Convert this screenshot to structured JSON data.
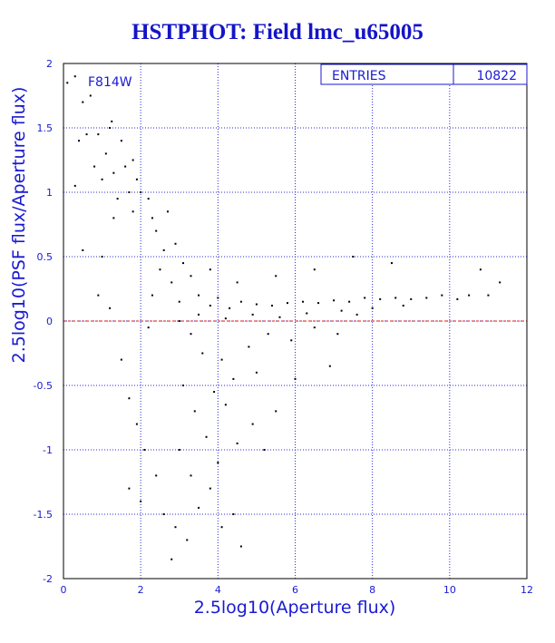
{
  "title": "HSTPHOT: Field lmc_u65005",
  "filter_label": "F814W",
  "stats_box": {
    "label": "ENTRIES",
    "value": "10822"
  },
  "colors": {
    "axis": "#1a1ad2",
    "grid": "#2a2ad6",
    "points": "#000000",
    "zero_line": "#d01818"
  },
  "chart_data": {
    "type": "scatter",
    "title": "HSTPHOT: Field lmc_u65005",
    "xlabel": "2.5log10(Aperture flux)",
    "ylabel": "2.5log10(PSF flux/Aperture flux)",
    "xlim": [
      0,
      12
    ],
    "ylim": [
      -2,
      2
    ],
    "xticks": [
      "0",
      "2",
      "4",
      "6",
      "8",
      "10",
      "12"
    ],
    "yticks": [
      "-2",
      "-1.5",
      "-1",
      "-0.5",
      "0",
      "0.5",
      "1",
      "1.5",
      "2"
    ],
    "grid": true,
    "reference_line_y": 0,
    "entries": 10822,
    "points": [
      [
        0.1,
        1.85
      ],
      [
        0.3,
        1.9
      ],
      [
        0.5,
        1.7
      ],
      [
        0.7,
        1.75
      ],
      [
        0.6,
        1.45
      ],
      [
        0.4,
        1.4
      ],
      [
        0.9,
        1.45
      ],
      [
        1.1,
        1.3
      ],
      [
        1.2,
        1.5
      ],
      [
        1.25,
        1.55
      ],
      [
        1.5,
        1.4
      ],
      [
        0.8,
        1.2
      ],
      [
        1.0,
        1.1
      ],
      [
        1.3,
        1.15
      ],
      [
        1.6,
        1.2
      ],
      [
        1.8,
        1.25
      ],
      [
        1.4,
        0.95
      ],
      [
        1.7,
        1.0
      ],
      [
        1.9,
        1.1
      ],
      [
        0.3,
        1.05
      ],
      [
        0.5,
        0.55
      ],
      [
        1.0,
        0.5
      ],
      [
        1.3,
        0.8
      ],
      [
        1.8,
        0.85
      ],
      [
        2.0,
        1.0
      ],
      [
        2.2,
        0.95
      ],
      [
        2.3,
        0.8
      ],
      [
        0.9,
        0.2
      ],
      [
        1.2,
        0.1
      ],
      [
        1.5,
        -0.3
      ],
      [
        1.7,
        -0.6
      ],
      [
        1.9,
        -0.8
      ],
      [
        2.1,
        -1.0
      ],
      [
        2.4,
        -1.2
      ],
      [
        2.0,
        -1.4
      ],
      [
        1.7,
        -1.3
      ],
      [
        2.6,
        -1.5
      ],
      [
        2.9,
        -1.6
      ],
      [
        3.2,
        -1.7
      ],
      [
        3.5,
        -1.45
      ],
      [
        3.8,
        -1.3
      ],
      [
        4.1,
        -1.6
      ],
      [
        4.4,
        -1.5
      ],
      [
        4.6,
        -1.75
      ],
      [
        2.8,
        -1.85
      ],
      [
        3.0,
        -1.0
      ],
      [
        3.3,
        -1.2
      ],
      [
        3.7,
        -0.9
      ],
      [
        4.0,
        -1.1
      ],
      [
        4.5,
        -0.95
      ],
      [
        4.9,
        -0.8
      ],
      [
        5.2,
        -1.0
      ],
      [
        5.5,
        -0.7
      ],
      [
        3.4,
        -0.7
      ],
      [
        3.1,
        -0.5
      ],
      [
        4.2,
        -0.65
      ],
      [
        2.9,
        0.6
      ],
      [
        3.1,
        0.45
      ],
      [
        3.3,
        0.35
      ],
      [
        2.8,
        0.3
      ],
      [
        3.0,
        0.15
      ],
      [
        3.5,
        0.2
      ],
      [
        3.8,
        0.12
      ],
      [
        4.0,
        0.18
      ],
      [
        4.3,
        0.1
      ],
      [
        4.6,
        0.15
      ],
      [
        5.0,
        0.13
      ],
      [
        5.4,
        0.12
      ],
      [
        5.8,
        0.14
      ],
      [
        6.2,
        0.15
      ],
      [
        6.6,
        0.14
      ],
      [
        7.0,
        0.16
      ],
      [
        7.4,
        0.15
      ],
      [
        7.8,
        0.18
      ],
      [
        8.2,
        0.17
      ],
      [
        8.6,
        0.18
      ],
      [
        9.0,
        0.17
      ],
      [
        9.4,
        0.18
      ],
      [
        9.8,
        0.2
      ],
      [
        10.2,
        0.17
      ],
      [
        10.5,
        0.2
      ],
      [
        11.0,
        0.2
      ],
      [
        11.3,
        0.3
      ],
      [
        10.8,
        0.4
      ],
      [
        8.5,
        0.45
      ],
      [
        7.5,
        0.5
      ],
      [
        6.5,
        0.4
      ],
      [
        5.5,
        0.35
      ],
      [
        4.5,
        0.3
      ],
      [
        3.8,
        0.4
      ],
      [
        3.3,
        -0.1
      ],
      [
        3.6,
        -0.25
      ],
      [
        4.1,
        -0.3
      ],
      [
        4.8,
        -0.2
      ],
      [
        5.3,
        -0.1
      ],
      [
        5.9,
        -0.15
      ],
      [
        6.5,
        -0.05
      ],
      [
        7.1,
        -0.1
      ],
      [
        7.6,
        0.05
      ],
      [
        6.9,
        -0.35
      ],
      [
        6.0,
        -0.45
      ],
      [
        5.0,
        -0.4
      ],
      [
        4.4,
        -0.45
      ],
      [
        3.9,
        -0.55
      ],
      [
        2.6,
        0.55
      ],
      [
        2.4,
        0.7
      ],
      [
        2.7,
        0.85
      ],
      [
        2.5,
        0.4
      ],
      [
        2.3,
        0.2
      ],
      [
        2.2,
        -0.05
      ],
      [
        3.0,
        0.0
      ],
      [
        3.5,
        0.05
      ],
      [
        4.2,
        0.02
      ],
      [
        4.9,
        0.05
      ],
      [
        5.6,
        0.03
      ],
      [
        6.3,
        0.06
      ],
      [
        7.2,
        0.08
      ],
      [
        8.0,
        0.1
      ],
      [
        8.8,
        0.12
      ]
    ]
  }
}
